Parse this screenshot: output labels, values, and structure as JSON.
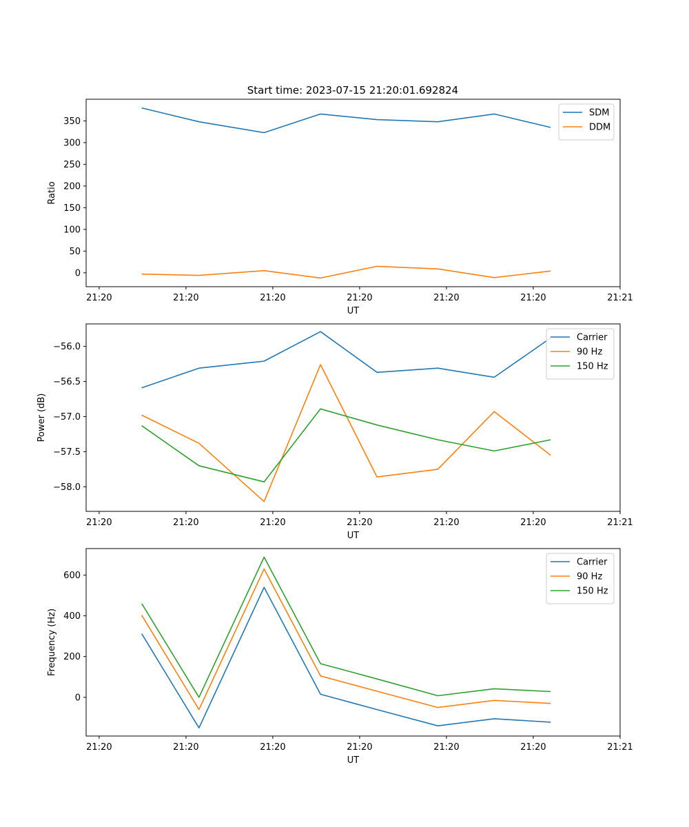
{
  "title": "Start time: 2023-07-15 21:20:01.692824",
  "colors": {
    "series1": "#1f77b4",
    "series2": "#ff7f0e",
    "series3": "#2ca02c",
    "axis": "#000000",
    "legend_border": "#cccccc",
    "background": "#ffffff"
  },
  "chart_data": [
    {
      "type": "line",
      "title": "Start time: 2023-07-15 21:20:01.692824",
      "xlabel": "UT",
      "ylabel": "Ratio",
      "legend_position": "top-right",
      "grid": false,
      "xlim": [
        -0.45,
        5.7
      ],
      "ylim": [
        -32,
        400
      ],
      "x_ticks": [
        -0.3,
        0.7,
        1.7,
        2.7,
        3.7,
        4.7,
        5.7
      ],
      "x_tick_labels": [
        "21:20",
        "21:20",
        "21:20",
        "21:20",
        "21:20",
        "21:20",
        "21:21"
      ],
      "y_ticks": [
        0,
        50,
        100,
        150,
        200,
        250,
        300,
        350
      ],
      "y_tick_labels": [
        "0",
        "50",
        "100",
        "150",
        "200",
        "250",
        "300",
        "350"
      ],
      "x": [
        0.19,
        0.85,
        1.6,
        2.25,
        2.9,
        3.6,
        4.25,
        4.9
      ],
      "series": [
        {
          "name": "SDM",
          "color_key": "series1",
          "values": [
            380,
            348,
            323,
            366,
            353,
            348,
            366,
            335
          ]
        },
        {
          "name": "DDM",
          "color_key": "series2",
          "values": [
            -3,
            -6,
            5,
            -12,
            15,
            9,
            -11,
            4
          ]
        }
      ]
    },
    {
      "type": "line",
      "title": "",
      "xlabel": "UT",
      "ylabel": "Power (dB)",
      "legend_position": "top-right",
      "grid": false,
      "xlim": [
        -0.45,
        5.7
      ],
      "ylim": [
        -58.35,
        -55.68
      ],
      "x_ticks": [
        -0.3,
        0.7,
        1.7,
        2.7,
        3.7,
        4.7,
        5.7
      ],
      "x_tick_labels": [
        "21:20",
        "21:20",
        "21:20",
        "21:20",
        "21:20",
        "21:20",
        "21:21"
      ],
      "y_ticks": [
        -58.0,
        -57.5,
        -57.0,
        -56.5,
        -56.0
      ],
      "y_tick_labels": [
        "−58.0",
        "−57.5",
        "−57.0",
        "−56.5",
        "−56.0"
      ],
      "x": [
        0.19,
        0.85,
        1.6,
        2.25,
        2.9,
        3.6,
        4.25,
        4.9
      ],
      "series": [
        {
          "name": "Carrier",
          "color_key": "series1",
          "values": [
            -56.59,
            -56.31,
            -56.21,
            -55.79,
            -56.37,
            -56.31,
            -56.44,
            -55.88
          ]
        },
        {
          "name": "90 Hz",
          "color_key": "series2",
          "values": [
            -56.98,
            -57.38,
            -58.21,
            -56.26,
            -57.86,
            -57.75,
            -56.93,
            -57.55
          ]
        },
        {
          "name": "150 Hz",
          "color_key": "series3",
          "values": [
            -57.13,
            -57.7,
            -57.93,
            -56.89,
            -57.12,
            -57.33,
            -57.49,
            -57.33
          ]
        }
      ]
    },
    {
      "type": "line",
      "title": "",
      "xlabel": "UT",
      "ylabel": "Frequency (Hz)",
      "legend_position": "top-right",
      "grid": false,
      "xlim": [
        -0.45,
        5.7
      ],
      "ylim": [
        -190,
        730
      ],
      "x_ticks": [
        -0.3,
        0.7,
        1.7,
        2.7,
        3.7,
        4.7,
        5.7
      ],
      "x_tick_labels": [
        "21:20",
        "21:20",
        "21:20",
        "21:20",
        "21:20",
        "21:20",
        "21:21"
      ],
      "y_ticks": [
        0,
        200,
        400,
        600
      ],
      "y_tick_labels": [
        "0",
        "200",
        "400",
        "600"
      ],
      "x": [
        0.19,
        0.85,
        1.6,
        2.25,
        2.9,
        3.6,
        4.25,
        4.9
      ],
      "series": [
        {
          "name": "Carrier",
          "color_key": "series1",
          "values": [
            312,
            -150,
            540,
            15,
            -60,
            -140,
            -105,
            -122
          ]
        },
        {
          "name": "90 Hz",
          "color_key": "series2",
          "values": [
            403,
            -60,
            630,
            105,
            30,
            -50,
            -15,
            -30
          ]
        },
        {
          "name": "150 Hz",
          "color_key": "series3",
          "values": [
            460,
            0,
            688,
            165,
            90,
            8,
            42,
            28
          ]
        }
      ]
    }
  ]
}
